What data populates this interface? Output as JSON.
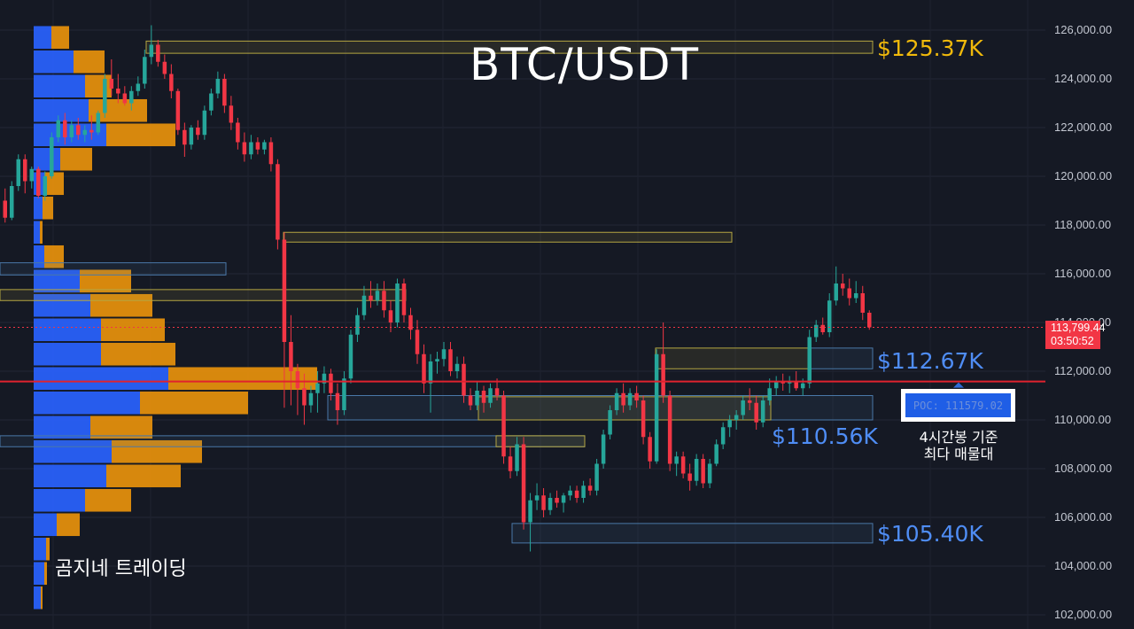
{
  "title": "BTC/USDT",
  "watermark": "곰지네 트레이딩",
  "current_price": "113,799.44",
  "countdown": "03:50:52",
  "poc_label": "POC: 111579.02",
  "poc_note": [
    "4시간봉 기준",
    "최다 매물대"
  ],
  "colors": {
    "background": "#151924",
    "up_candle": "#26a69a",
    "down_candle": "#f23645",
    "volume_buy": "#2962ff",
    "volume_sell": "#e8910c",
    "resistance_box": "#b5a642",
    "support_box": "#4a78a8",
    "poc_line": "#e0222e"
  },
  "chart_data": {
    "type": "candlestick",
    "symbol": "BTC/USDT",
    "y_axis": {
      "ylim": [
        101500,
        127000
      ],
      "ticks": [
        "102,000.00",
        "104,000.00",
        "106,000.00",
        "108,000.00",
        "110,000.00",
        "112,000.00",
        "114,000.00",
        "116,000.00",
        "118,000.00",
        "120,000.00",
        "122,000.00",
        "124,000.00",
        "126,000.00"
      ]
    },
    "grid": true,
    "price_levels": [
      {
        "value": 125370,
        "label": "$125.37K",
        "role": "resistance"
      },
      {
        "value": 112670,
        "label": "$112.67K",
        "role": "resistance"
      },
      {
        "value": 110560,
        "label": "$110.56K",
        "role": "support"
      },
      {
        "value": 105400,
        "label": "$105.40K",
        "role": "support"
      }
    ],
    "poc_price": 111579.02,
    "last_price": 113799.44,
    "zones": [
      {
        "kind": "resistance",
        "top": 125550,
        "bottom": 125050
      },
      {
        "kind": "resistance",
        "top": 117700,
        "bottom": 117300
      },
      {
        "kind": "support",
        "top": 116450,
        "bottom": 115950
      },
      {
        "kind": "resistance",
        "top": 115350,
        "bottom": 114900
      },
      {
        "kind": "resistance",
        "top": 112950,
        "bottom": 112100
      },
      {
        "kind": "support",
        "top": 112950,
        "bottom": 112100
      },
      {
        "kind": "support",
        "top": 111000,
        "bottom": 110000
      },
      {
        "kind": "resistance",
        "top": 110950,
        "bottom": 110000
      },
      {
        "kind": "support",
        "top": 109350,
        "bottom": 108900
      },
      {
        "kind": "resistance",
        "top": 109350,
        "bottom": 108900
      },
      {
        "kind": "support",
        "top": 105750,
        "bottom": 104950
      }
    ],
    "volume_profile": [
      {
        "price": 125700,
        "buy": 20,
        "sell": 20
      },
      {
        "price": 124700,
        "buy": 45,
        "sell": 35
      },
      {
        "price": 123700,
        "buy": 58,
        "sell": 30
      },
      {
        "price": 122700,
        "buy": 62,
        "sell": 66
      },
      {
        "price": 121700,
        "buy": 82,
        "sell": 78
      },
      {
        "price": 120700,
        "buy": 30,
        "sell": 36
      },
      {
        "price": 119700,
        "buy": 12,
        "sell": 22
      },
      {
        "price": 118700,
        "buy": 10,
        "sell": 12
      },
      {
        "price": 117700,
        "buy": 7,
        "sell": 3
      },
      {
        "price": 116700,
        "buy": 12,
        "sell": 22
      },
      {
        "price": 115700,
        "buy": 52,
        "sell": 58
      },
      {
        "price": 114700,
        "buy": 64,
        "sell": 70
      },
      {
        "price": 113700,
        "buy": 76,
        "sell": 72
      },
      {
        "price": 112700,
        "buy": 76,
        "sell": 84
      },
      {
        "price": 111700,
        "buy": 152,
        "sell": 168
      },
      {
        "price": 110700,
        "buy": 120,
        "sell": 122
      },
      {
        "price": 109700,
        "buy": 64,
        "sell": 70
      },
      {
        "price": 108700,
        "buy": 88,
        "sell": 102
      },
      {
        "price": 107700,
        "buy": 82,
        "sell": 84
      },
      {
        "price": 106700,
        "buy": 58,
        "sell": 52
      },
      {
        "price": 105700,
        "buy": 26,
        "sell": 26
      },
      {
        "price": 104700,
        "buy": 14,
        "sell": 4
      },
      {
        "price": 103700,
        "buy": 12,
        "sell": 3
      },
      {
        "price": 102700,
        "buy": 8,
        "sell": 2
      }
    ],
    "candles": [
      [
        119000,
        119500,
        118100,
        118300
      ],
      [
        118300,
        119800,
        118200,
        119600
      ],
      [
        119600,
        120900,
        119400,
        120700
      ],
      [
        120700,
        120900,
        119300,
        119800
      ],
      [
        119800,
        120400,
        119500,
        120300
      ],
      [
        120300,
        120400,
        119100,
        119200
      ],
      [
        119200,
        120200,
        119000,
        120000
      ],
      [
        120000,
        121800,
        119900,
        121600
      ],
      [
        121600,
        122500,
        121400,
        122300
      ],
      [
        122300,
        122600,
        121300,
        121600
      ],
      [
        121600,
        122300,
        121400,
        122100
      ],
      [
        122100,
        122400,
        121500,
        121700
      ],
      [
        121700,
        122100,
        121400,
        121900
      ],
      [
        121900,
        122500,
        121500,
        121800
      ],
      [
        121800,
        122700,
        121700,
        122600
      ],
      [
        122600,
        124200,
        122400,
        124000
      ],
      [
        124000,
        124800,
        123300,
        123600
      ],
      [
        123600,
        124200,
        123000,
        123400
      ],
      [
        123400,
        123700,
        122900,
        123000
      ],
      [
        123000,
        123700,
        122700,
        123500
      ],
      [
        123500,
        124100,
        123300,
        123800
      ],
      [
        123800,
        125200,
        123600,
        124900
      ],
      [
        124900,
        126200,
        124600,
        125400
      ],
      [
        125400,
        125600,
        124500,
        124700
      ],
      [
        124700,
        125000,
        124000,
        124200
      ],
      [
        124200,
        124600,
        123200,
        123500
      ],
      [
        123500,
        123600,
        121700,
        121900
      ],
      [
        121900,
        122200,
        120800,
        121300
      ],
      [
        121300,
        122100,
        121100,
        122000
      ],
      [
        122000,
        122300,
        121500,
        121700
      ],
      [
        121700,
        122900,
        121500,
        122700
      ],
      [
        122700,
        123600,
        122500,
        123400
      ],
      [
        123400,
        124300,
        123200,
        124000
      ],
      [
        124000,
        124200,
        122600,
        122900
      ],
      [
        122900,
        123300,
        121900,
        122200
      ],
      [
        122200,
        122400,
        121100,
        121400
      ],
      [
        121400,
        121800,
        120600,
        120900
      ],
      [
        120900,
        121700,
        120700,
        121400
      ],
      [
        121400,
        121600,
        120900,
        121100
      ],
      [
        121100,
        121500,
        120900,
        121400
      ],
      [
        121400,
        121600,
        120200,
        120500
      ],
      [
        120500,
        120700,
        117000,
        117400
      ],
      [
        117400,
        117700,
        110500,
        113200
      ],
      [
        113200,
        114300,
        110600,
        112000
      ],
      [
        112000,
        112300,
        110200,
        111300
      ],
      [
        111300,
        111900,
        109800,
        110600
      ],
      [
        110600,
        111400,
        110300,
        111100
      ],
      [
        111100,
        112000,
        110300,
        111500
      ],
      [
        111500,
        112200,
        111100,
        111900
      ],
      [
        111900,
        112100,
        110800,
        111100
      ],
      [
        111100,
        111500,
        109800,
        110400
      ],
      [
        110400,
        112000,
        110200,
        111700
      ],
      [
        111700,
        113700,
        111500,
        113500
      ],
      [
        113500,
        114600,
        113200,
        114300
      ],
      [
        114300,
        115500,
        114100,
        115100
      ],
      [
        115100,
        115700,
        114600,
        114900
      ],
      [
        114900,
        115600,
        114700,
        115300
      ],
      [
        115300,
        115700,
        114200,
        114500
      ],
      [
        114500,
        114900,
        113600,
        114000
      ],
      [
        114000,
        115800,
        113800,
        115600
      ],
      [
        115600,
        115800,
        114000,
        114300
      ],
      [
        114300,
        114600,
        113300,
        113700
      ],
      [
        113700,
        114100,
        112300,
        112700
      ],
      [
        112700,
        113100,
        111100,
        111500
      ],
      [
        111500,
        112700,
        110300,
        112400
      ],
      [
        112400,
        112800,
        111900,
        112500
      ],
      [
        112500,
        113200,
        112200,
        112900
      ],
      [
        112900,
        113200,
        111800,
        112000
      ],
      [
        112000,
        112600,
        111700,
        112300
      ],
      [
        112300,
        112600,
        110700,
        111000
      ],
      [
        111000,
        111300,
        110400,
        110600
      ],
      [
        110600,
        111600,
        110400,
        111200
      ],
      [
        111200,
        111400,
        110300,
        110700
      ],
      [
        110700,
        111500,
        110500,
        111300
      ],
      [
        111300,
        111700,
        110800,
        111000
      ],
      [
        111000,
        111200,
        108200,
        108500
      ],
      [
        108500,
        108900,
        107600,
        107900
      ],
      [
        107900,
        109300,
        107700,
        109000
      ],
      [
        109000,
        109300,
        105500,
        105800
      ],
      [
        105800,
        107000,
        104600,
        106700
      ],
      [
        106700,
        107400,
        106300,
        106900
      ],
      [
        106900,
        107200,
        106000,
        106300
      ],
      [
        106300,
        107000,
        106100,
        106800
      ],
      [
        106800,
        107100,
        106400,
        106600
      ],
      [
        106600,
        107000,
        106200,
        106900
      ],
      [
        106900,
        107300,
        106700,
        107100
      ],
      [
        107100,
        107300,
        106600,
        106800
      ],
      [
        106800,
        107500,
        106600,
        107300
      ],
      [
        107300,
        107600,
        106900,
        107100
      ],
      [
        107100,
        108400,
        106900,
        108200
      ],
      [
        108200,
        109600,
        108000,
        109400
      ],
      [
        109400,
        110600,
        109200,
        110400
      ],
      [
        110400,
        111300,
        110200,
        111100
      ],
      [
        111100,
        111500,
        110300,
        110600
      ],
      [
        110600,
        111300,
        110400,
        111100
      ],
      [
        111100,
        111400,
        110500,
        110800
      ],
      [
        110800,
        111000,
        109000,
        109300
      ],
      [
        109300,
        109500,
        108000,
        108300
      ],
      [
        108300,
        112900,
        108200,
        112700
      ],
      [
        112700,
        114000,
        110700,
        111000
      ],
      [
        111000,
        111200,
        107900,
        108200
      ],
      [
        108200,
        108700,
        107700,
        108500
      ],
      [
        108500,
        108700,
        107600,
        107800
      ],
      [
        107800,
        108200,
        107100,
        107500
      ],
      [
        107500,
        108600,
        107300,
        108400
      ],
      [
        108400,
        108600,
        107200,
        107400
      ],
      [
        107400,
        108400,
        107200,
        108200
      ],
      [
        108200,
        109200,
        108100,
        109000
      ],
      [
        109000,
        109900,
        108800,
        109700
      ],
      [
        109700,
        110200,
        109300,
        110000
      ],
      [
        110000,
        110400,
        109600,
        110200
      ],
      [
        110200,
        111000,
        110000,
        110800
      ],
      [
        110800,
        111300,
        110400,
        110700
      ],
      [
        110700,
        111000,
        109600,
        109900
      ],
      [
        109900,
        111000,
        109700,
        110800
      ],
      [
        110800,
        111700,
        110600,
        111300
      ],
      [
        111300,
        111800,
        111000,
        111600
      ],
      [
        111600,
        111900,
        111200,
        111500
      ],
      [
        111500,
        111800,
        111100,
        111600
      ],
      [
        111600,
        112000,
        111200,
        111300
      ],
      [
        111300,
        111700,
        111000,
        111500
      ],
      [
        111500,
        113700,
        111300,
        113400
      ],
      [
        113400,
        114100,
        113200,
        113900
      ],
      [
        113900,
        114200,
        113500,
        113600
      ],
      [
        113600,
        115200,
        113400,
        114900
      ],
      [
        114900,
        116300,
        114700,
        115600
      ],
      [
        115600,
        116000,
        115100,
        115400
      ],
      [
        115400,
        115800,
        114700,
        115000
      ],
      [
        115000,
        115700,
        114800,
        115200
      ],
      [
        115200,
        115500,
        114100,
        114400
      ],
      [
        114400,
        114500,
        113700,
        113800
      ]
    ]
  }
}
